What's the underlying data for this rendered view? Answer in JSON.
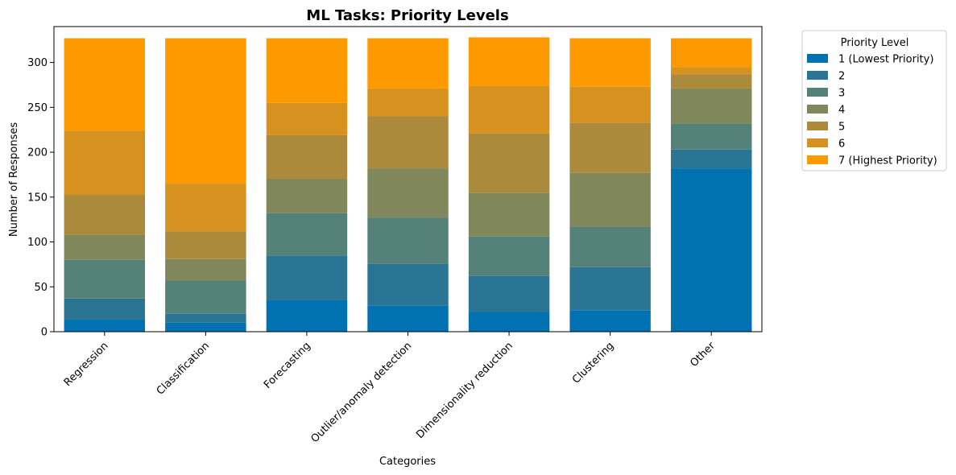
{
  "chart_data": {
    "type": "bar",
    "stacked": true,
    "title": "ML Tasks: Priority Levels",
    "xlabel": "Categories",
    "ylabel": "Number of Responses",
    "ylim": [
      0,
      340
    ],
    "yticks": [
      0,
      50,
      100,
      150,
      200,
      250,
      300
    ],
    "grid": false,
    "legend_position": "outside-top-right",
    "legend_title": "Priority Level",
    "categories": [
      "Regression",
      "Classification",
      "Forecasting",
      "Outlier/anomaly detection",
      "Dimensionality reduction",
      "Clustering",
      "Other"
    ],
    "series": [
      {
        "name": "1 (Lowest Priority)",
        "color": "#0072B2",
        "values": [
          13,
          10,
          35,
          29,
          22,
          24,
          182
        ]
      },
      {
        "name": "2",
        "color": "#2A7594",
        "values": [
          24,
          10,
          50,
          47,
          40,
          48,
          21
        ]
      },
      {
        "name": "3",
        "color": "#558278",
        "values": [
          43,
          37,
          47,
          51,
          44,
          45,
          29
        ]
      },
      {
        "name": "4",
        "color": "#80875B",
        "values": [
          28,
          24,
          38,
          55,
          49,
          60,
          39
        ]
      },
      {
        "name": "5",
        "color": "#AC8A3C",
        "values": [
          45,
          31,
          49,
          58,
          66,
          56,
          16
        ]
      },
      {
        "name": "6",
        "color": "#D6911E",
        "values": [
          71,
          53,
          36,
          31,
          53,
          40,
          8
        ]
      },
      {
        "name": "7 (Highest Priority)",
        "color": "#FF9900",
        "values": [
          103,
          162,
          72,
          56,
          54,
          54,
          32
        ]
      }
    ]
  }
}
